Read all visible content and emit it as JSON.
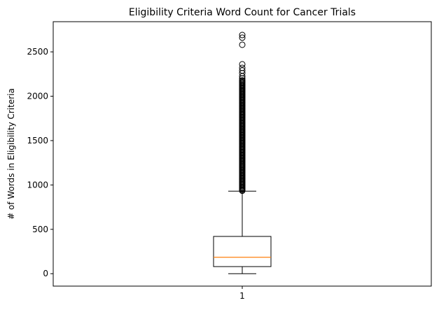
{
  "chart_data": {
    "type": "box",
    "title": "Eligibility Criteria Word Count for Cancer Trials",
    "xlabel": "",
    "ylabel": "# of Words in Eligibility Criteria",
    "categories": [
      "1"
    ],
    "ylim": [
      -140,
      2840
    ],
    "yticks": [
      0,
      500,
      1000,
      1500,
      2000,
      2500
    ],
    "ytick_labels": [
      "0",
      "500",
      "1000",
      "1500",
      "2000",
      "2500"
    ],
    "grid": false,
    "box": {
      "category": "1",
      "whisker_low": 0,
      "q1": 80,
      "median": 185,
      "q3": 420,
      "whisker_high": 930,
      "outlier_dense_range": [
        935,
        2180
      ],
      "outliers_sparse": [
        2200,
        2225,
        2260,
        2290,
        2320,
        2360,
        2580,
        2660,
        2690
      ],
      "box_color": "#000000",
      "median_color": "#ff7f0e",
      "flier_color": "#000000"
    }
  }
}
